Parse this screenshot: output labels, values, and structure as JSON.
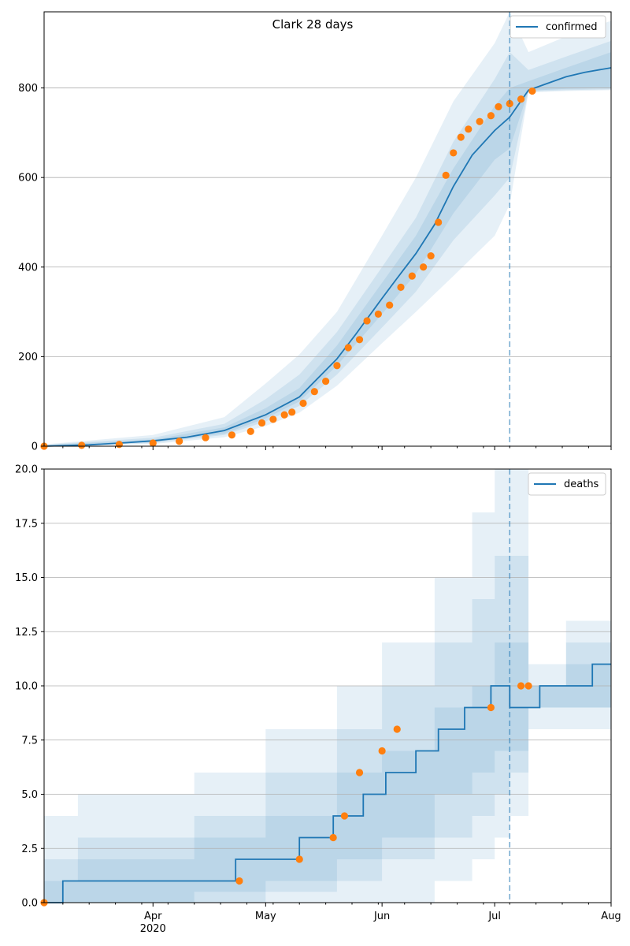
{
  "colors": {
    "model_line": "#1f77b4",
    "observed": "#ff7f0e",
    "band": "#1f77b4",
    "grid": "#b0b0b0",
    "vline": "#1f77b4"
  },
  "chart_data": [
    {
      "type": "line",
      "title": "Clark 28 days",
      "xlabel": "",
      "ylabel": "",
      "xlim": [
        "2020-03-03",
        "2020-08-01"
      ],
      "ylim": [
        0,
        970
      ],
      "yticks": [
        0,
        200,
        400,
        600,
        800
      ],
      "ytick_labels": [
        "0",
        "200",
        "400",
        "600",
        "800"
      ],
      "grid": "horizontal",
      "legend": "top-right",
      "legend_entries": [
        "confirmed"
      ],
      "forecast_start": "2020-07-05",
      "series": [
        {
          "name": "confirmed",
          "kind": "model_median",
          "x": [
            "2020-03-03",
            "2020-03-15",
            "2020-03-25",
            "2020-04-01",
            "2020-04-10",
            "2020-04-20",
            "2020-05-01",
            "2020-05-10",
            "2020-05-20",
            "2020-05-25",
            "2020-06-01",
            "2020-06-05",
            "2020-06-10",
            "2020-06-15",
            "2020-06-20",
            "2020-06-25",
            "2020-07-01",
            "2020-07-05",
            "2020-07-10",
            "2020-07-15",
            "2020-07-20",
            "2020-07-25",
            "2020-08-01"
          ],
          "y": [
            0,
            3,
            8,
            12,
            20,
            35,
            70,
            110,
            195,
            250,
            330,
            375,
            430,
            495,
            580,
            650,
            705,
            735,
            795,
            810,
            825,
            835,
            845
          ]
        },
        {
          "kind": "observed",
          "x": [
            "2020-03-03",
            "2020-03-13",
            "2020-03-23",
            "2020-04-01",
            "2020-04-08",
            "2020-04-15",
            "2020-04-22",
            "2020-04-27",
            "2020-04-30",
            "2020-05-03",
            "2020-05-06",
            "2020-05-08",
            "2020-05-11",
            "2020-05-14",
            "2020-05-17",
            "2020-05-20",
            "2020-05-23",
            "2020-05-26",
            "2020-05-28",
            "2020-05-31",
            "2020-06-03",
            "2020-06-06",
            "2020-06-09",
            "2020-06-12",
            "2020-06-14",
            "2020-06-16",
            "2020-06-18",
            "2020-06-20",
            "2020-06-22",
            "2020-06-24",
            "2020-06-27",
            "2020-06-30",
            "2020-07-02",
            "2020-07-05",
            "2020-07-08",
            "2020-07-11"
          ],
          "y": [
            0,
            2,
            4,
            7,
            11,
            19,
            25,
            33,
            52,
            60,
            70,
            76,
            96,
            122,
            145,
            180,
            220,
            238,
            280,
            295,
            315,
            355,
            380,
            400,
            425,
            500,
            605,
            655,
            690,
            708,
            725,
            738,
            758,
            765,
            775,
            793
          ]
        }
      ],
      "bands": [
        {
          "x": [
            "2020-03-03",
            "2020-04-01",
            "2020-04-20",
            "2020-05-01",
            "2020-05-10",
            "2020-05-20",
            "2020-06-01",
            "2020-06-10",
            "2020-06-20",
            "2020-07-01",
            "2020-07-05",
            "2020-07-10",
            "2020-07-20",
            "2020-08-01"
          ],
          "lower": [
            0,
            5,
            20,
            45,
            75,
            135,
            230,
            300,
            380,
            470,
            540,
            790,
            793,
            795
          ],
          "upper": [
            4,
            25,
            65,
            140,
            205,
            300,
            470,
            600,
            770,
            900,
            970,
            880,
            915,
            950
          ]
        },
        {
          "x": [
            "2020-03-03",
            "2020-04-01",
            "2020-04-20",
            "2020-05-01",
            "2020-05-10",
            "2020-05-20",
            "2020-06-01",
            "2020-06-10",
            "2020-06-20",
            "2020-07-01",
            "2020-07-05",
            "2020-07-10",
            "2020-07-20",
            "2020-08-01"
          ],
          "lower": [
            0,
            7,
            25,
            55,
            90,
            160,
            265,
            345,
            460,
            560,
            600,
            792,
            795,
            797
          ],
          "upper": [
            3,
            19,
            50,
            105,
            160,
            255,
            400,
            510,
            680,
            820,
            880,
            840,
            870,
            905
          ]
        },
        {
          "x": [
            "2020-03-03",
            "2020-04-01",
            "2020-04-20",
            "2020-05-01",
            "2020-05-10",
            "2020-05-20",
            "2020-06-01",
            "2020-06-10",
            "2020-06-20",
            "2020-07-01",
            "2020-07-05",
            "2020-07-10",
            "2020-07-20",
            "2020-08-01"
          ],
          "lower": [
            0,
            9,
            28,
            62,
            100,
            180,
            295,
            385,
            520,
            640,
            665,
            794,
            798,
            800
          ],
          "upper": [
            2,
            15,
            42,
            85,
            130,
            225,
            365,
            470,
            620,
            760,
            800,
            815,
            845,
            880
          ]
        }
      ]
    },
    {
      "type": "line",
      "title": "",
      "xlabel": "",
      "ylabel": "",
      "xlim": [
        "2020-03-03",
        "2020-08-01"
      ],
      "ylim": [
        0,
        20
      ],
      "yticks": [
        0,
        2.5,
        5,
        7.5,
        10,
        12.5,
        15,
        17.5,
        20
      ],
      "ytick_labels": [
        "0.0",
        "2.5",
        "5.0",
        "7.5",
        "10.0",
        "12.5",
        "15.0",
        "17.5",
        "20.0"
      ],
      "grid": "horizontal",
      "legend": "top-right",
      "legend_entries": [
        "deaths"
      ],
      "forecast_start": "2020-07-05",
      "xticks": [
        "2020-04-01",
        "2020-05-01",
        "2020-06-01",
        "2020-07-01",
        "2020-08-01"
      ],
      "xtick_labels": [
        "Apr",
        "May",
        "Jun",
        "Jul",
        "Aug"
      ],
      "xtick_year": "2020",
      "series": [
        {
          "name": "deaths",
          "kind": "model_median_step",
          "x": [
            "2020-03-03",
            "2020-03-08",
            "2020-04-23",
            "2020-05-10",
            "2020-05-19",
            "2020-05-27",
            "2020-06-02",
            "2020-06-10",
            "2020-06-16",
            "2020-06-23",
            "2020-06-30",
            "2020-07-05",
            "2020-07-10",
            "2020-07-13",
            "2020-07-27",
            "2020-08-01"
          ],
          "y": [
            0,
            1,
            2,
            3,
            4,
            5,
            6,
            7,
            8,
            9,
            10,
            9,
            9,
            10,
            11,
            11
          ]
        },
        {
          "kind": "observed",
          "x": [
            "2020-03-03",
            "2020-04-24",
            "2020-05-10",
            "2020-05-19",
            "2020-05-22",
            "2020-05-26",
            "2020-06-01",
            "2020-06-05",
            "2020-06-30",
            "2020-07-08",
            "2020-07-10"
          ],
          "y": [
            0,
            1,
            2,
            3,
            4,
            6,
            7,
            8,
            9,
            10,
            10
          ]
        }
      ],
      "bands": [
        {
          "x": [
            "2020-03-03",
            "2020-03-12",
            "2020-04-12",
            "2020-05-01",
            "2020-05-20",
            "2020-06-01",
            "2020-06-15",
            "2020-06-25",
            "2020-07-01",
            "2020-07-05",
            "2020-07-10",
            "2020-07-20",
            "2020-08-01"
          ],
          "lower": [
            0,
            0,
            0,
            0,
            0,
            0,
            1,
            2,
            3,
            4,
            8,
            8,
            8
          ],
          "upper": [
            4,
            5,
            6,
            8,
            10,
            12,
            15,
            18,
            20,
            20,
            11,
            13,
            15
          ]
        },
        {
          "x": [
            "2020-03-03",
            "2020-03-12",
            "2020-04-12",
            "2020-05-01",
            "2020-05-20",
            "2020-06-01",
            "2020-06-15",
            "2020-06-25",
            "2020-07-01",
            "2020-07-05",
            "2020-07-10",
            "2020-07-20",
            "2020-08-01"
          ],
          "lower": [
            0,
            0,
            0,
            0.5,
            1,
            2,
            3,
            4,
            5,
            6,
            9,
            9,
            9
          ],
          "upper": [
            2,
            3,
            4,
            6,
            8,
            10,
            12,
            14,
            16,
            16,
            10,
            12,
            13
          ]
        },
        {
          "x": [
            "2020-03-03",
            "2020-03-12",
            "2020-04-12",
            "2020-05-01",
            "2020-05-20",
            "2020-06-01",
            "2020-06-15",
            "2020-06-25",
            "2020-07-01",
            "2020-07-05",
            "2020-07-10",
            "2020-07-20",
            "2020-08-01"
          ],
          "lower": [
            0,
            0,
            0.5,
            1,
            2,
            3,
            5,
            6,
            7,
            7,
            9,
            9,
            9
          ],
          "upper": [
            1,
            2,
            3,
            4,
            6,
            7,
            9,
            10,
            12,
            12,
            10,
            11,
            12
          ]
        }
      ]
    }
  ]
}
